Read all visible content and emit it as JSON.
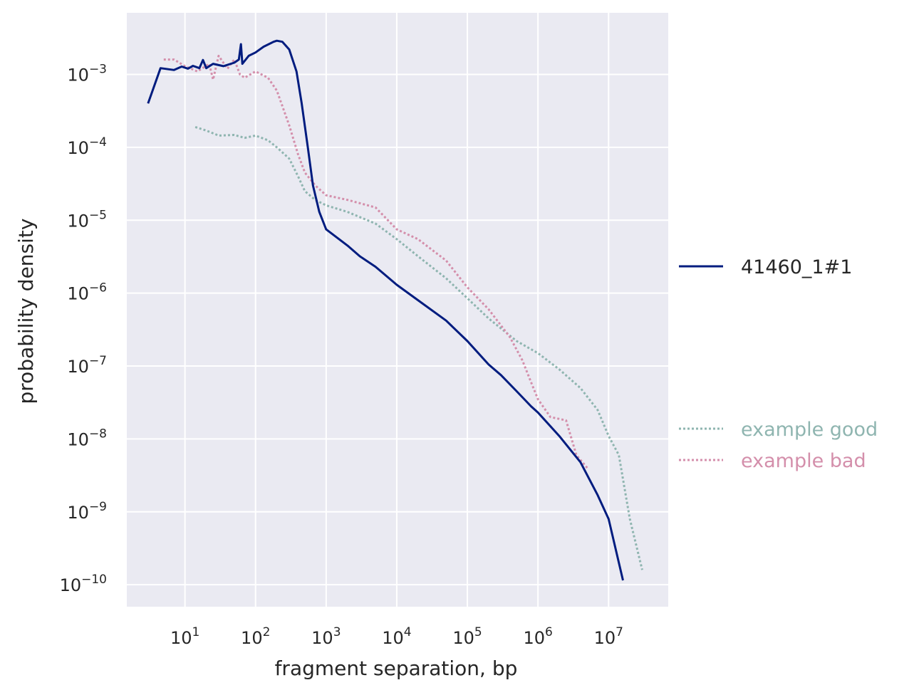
{
  "chart_data": {
    "type": "line",
    "title": "",
    "xlabel": "fragment separation, bp",
    "ylabel": "probability density",
    "xscale": "log",
    "yscale": "log",
    "xlim": [
      1.5,
      70000000
    ],
    "ylim": [
      5e-11,
      0.007
    ],
    "x_ticks": [
      {
        "base": "10",
        "exp": "1"
      },
      {
        "base": "10",
        "exp": "2"
      },
      {
        "base": "10",
        "exp": "3"
      },
      {
        "base": "10",
        "exp": "4"
      },
      {
        "base": "10",
        "exp": "5"
      },
      {
        "base": "10",
        "exp": "6"
      },
      {
        "base": "10",
        "exp": "7"
      }
    ],
    "y_ticks": [
      {
        "base": "10",
        "exp": "−3"
      },
      {
        "base": "10",
        "exp": "−4"
      },
      {
        "base": "10",
        "exp": "−5"
      },
      {
        "base": "10",
        "exp": "−6"
      },
      {
        "base": "10",
        "exp": "−7"
      },
      {
        "base": "10",
        "exp": "−8"
      },
      {
        "base": "10",
        "exp": "−9"
      },
      {
        "base": "10",
        "exp": "−10"
      }
    ],
    "grid": true,
    "legend_placement": "right, outside plot",
    "series": [
      {
        "name": "41460_1#1",
        "color": "#001c7f",
        "style": "solid",
        "points": [
          [
            3,
            0.0004
          ],
          [
            4.5,
            0.00122
          ],
          [
            7,
            0.00115
          ],
          [
            9,
            0.00128
          ],
          [
            11,
            0.0012
          ],
          [
            13,
            0.00131
          ],
          [
            16,
            0.00122
          ],
          [
            18,
            0.00158
          ],
          [
            20,
            0.00122
          ],
          [
            25,
            0.0014
          ],
          [
            35,
            0.0013
          ],
          [
            50,
            0.00145
          ],
          [
            58,
            0.0016
          ],
          [
            62,
            0.0026
          ],
          [
            65,
            0.0014
          ],
          [
            80,
            0.0018
          ],
          [
            100,
            0.002
          ],
          [
            130,
            0.0024
          ],
          [
            180,
            0.0028
          ],
          [
            200,
            0.0029
          ],
          [
            240,
            0.0028
          ],
          [
            300,
            0.0022
          ],
          [
            380,
            0.0011
          ],
          [
            450,
            0.0004
          ],
          [
            550,
            0.0001
          ],
          [
            650,
            3e-05
          ],
          [
            800,
            1.3e-05
          ],
          [
            1000,
            7.5e-06
          ],
          [
            2000,
            4.5e-06
          ],
          [
            3000,
            3.2e-06
          ],
          [
            5000,
            2.3e-06
          ],
          [
            10000,
            1.3e-06
          ],
          [
            20000,
            8e-07
          ],
          [
            50000,
            4.2e-07
          ],
          [
            100000,
            2.2e-07
          ],
          [
            200000,
            1.05e-07
          ],
          [
            300000,
            7.5e-08
          ],
          [
            500000,
            4.5e-08
          ],
          [
            800000,
            2.8e-08
          ],
          [
            1000000,
            2.3e-08
          ],
          [
            2000000,
            1.1e-08
          ],
          [
            4000000,
            4.8e-09
          ],
          [
            7000000,
            1.7e-09
          ],
          [
            10000000,
            8e-10
          ],
          [
            16000000,
            1.15e-10
          ]
        ]
      },
      {
        "name": "example good",
        "color": "#8fb5b0",
        "style": "dotted",
        "points": [
          [
            14,
            0.00019
          ],
          [
            20,
            0.00017
          ],
          [
            30,
            0.000145
          ],
          [
            50,
            0.000148
          ],
          [
            70,
            0.000135
          ],
          [
            100,
            0.000145
          ],
          [
            150,
            0.000125
          ],
          [
            200,
            0.0001
          ],
          [
            300,
            7e-05
          ],
          [
            400,
            4e-05
          ],
          [
            500,
            2.5e-05
          ],
          [
            700,
            1.9e-05
          ],
          [
            1000,
            1.6e-05
          ],
          [
            2000,
            1.3e-05
          ],
          [
            5000,
            9e-06
          ],
          [
            10000,
            5.5e-06
          ],
          [
            20000,
            3.2e-06
          ],
          [
            50000,
            1.6e-06
          ],
          [
            100000,
            8.5e-07
          ],
          [
            200000,
            4.5e-07
          ],
          [
            500000,
            2.2e-07
          ],
          [
            1000000,
            1.5e-07
          ],
          [
            2000000,
            9e-08
          ],
          [
            4000000,
            5e-08
          ],
          [
            7000000,
            2.5e-08
          ],
          [
            10000000,
            1.1e-08
          ],
          [
            14000000,
            6e-09
          ],
          [
            20000000,
            8e-10
          ],
          [
            30000000,
            1.6e-10
          ]
        ]
      },
      {
        "name": "example bad",
        "color": "#d48fab",
        "style": "dotted",
        "points": [
          [
            5,
            0.0016
          ],
          [
            7,
            0.0016
          ],
          [
            10,
            0.0013
          ],
          [
            15,
            0.0011
          ],
          [
            22,
            0.0014
          ],
          [
            25,
            0.00085
          ],
          [
            30,
            0.0018
          ],
          [
            40,
            0.0012
          ],
          [
            50,
            0.0016
          ],
          [
            60,
            0.001
          ],
          [
            70,
            0.0009
          ],
          [
            100,
            0.0011
          ],
          [
            150,
            0.0009
          ],
          [
            200,
            0.0006
          ],
          [
            300,
            0.0002
          ],
          [
            400,
            8e-05
          ],
          [
            500,
            4.5e-05
          ],
          [
            700,
            3e-05
          ],
          [
            1000,
            2.2e-05
          ],
          [
            2000,
            1.9e-05
          ],
          [
            5000,
            1.5e-05
          ],
          [
            10000,
            7.5e-06
          ],
          [
            20000,
            5.5e-06
          ],
          [
            50000,
            2.8e-06
          ],
          [
            100000,
            1.2e-06
          ],
          [
            200000,
            6e-07
          ],
          [
            400000,
            2.5e-07
          ],
          [
            600000,
            1.2e-07
          ],
          [
            800000,
            6e-08
          ],
          [
            1000000,
            3.5e-08
          ],
          [
            1500000,
            2e-08
          ],
          [
            2500000,
            1.8e-08
          ],
          [
            3500000,
            6e-09
          ],
          [
            5000000,
            4e-09
          ]
        ]
      }
    ]
  }
}
